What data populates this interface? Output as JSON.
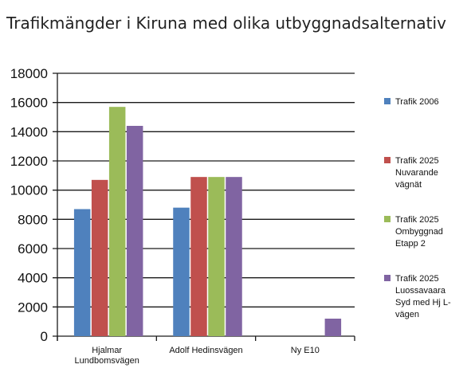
{
  "chart_data": {
    "type": "bar",
    "title": "Trafikmängder i Kiruna med olika utbyggnadsalternativ",
    "xlabel": "",
    "ylabel": "",
    "ylim": [
      0,
      18000
    ],
    "yticks": [
      "18000",
      "16000",
      "14000",
      "12000",
      "10000",
      "8000",
      "6000",
      "4000",
      "2000",
      "0"
    ],
    "categories": [
      [
        "Hjalmar",
        "Lundbomsvägen"
      ],
      [
        "Adolf Hedinsvägen"
      ],
      [
        "Ny E10"
      ]
    ],
    "grid": true,
    "legend_position": "right",
    "series": [
      {
        "name": [
          "Trafik 2006"
        ],
        "color": "#4f81bd",
        "values": [
          8700,
          8800,
          0
        ]
      },
      {
        "name": [
          "Trafik 2025",
          "Nuvarande",
          "vägnät"
        ],
        "color": "#c0504d",
        "values": [
          10700,
          10900,
          0
        ]
      },
      {
        "name": [
          "Trafik 2025",
          "Ombyggnad",
          "Etapp 2"
        ],
        "color": "#9bbb59",
        "values": [
          15700,
          10900,
          0
        ]
      },
      {
        "name": [
          "Trafik 2025",
          "Luossavaara",
          "Syd med Hj L-",
          "vägen"
        ],
        "color": "#8064a2",
        "values": [
          14400,
          10900,
          1200
        ]
      }
    ]
  }
}
